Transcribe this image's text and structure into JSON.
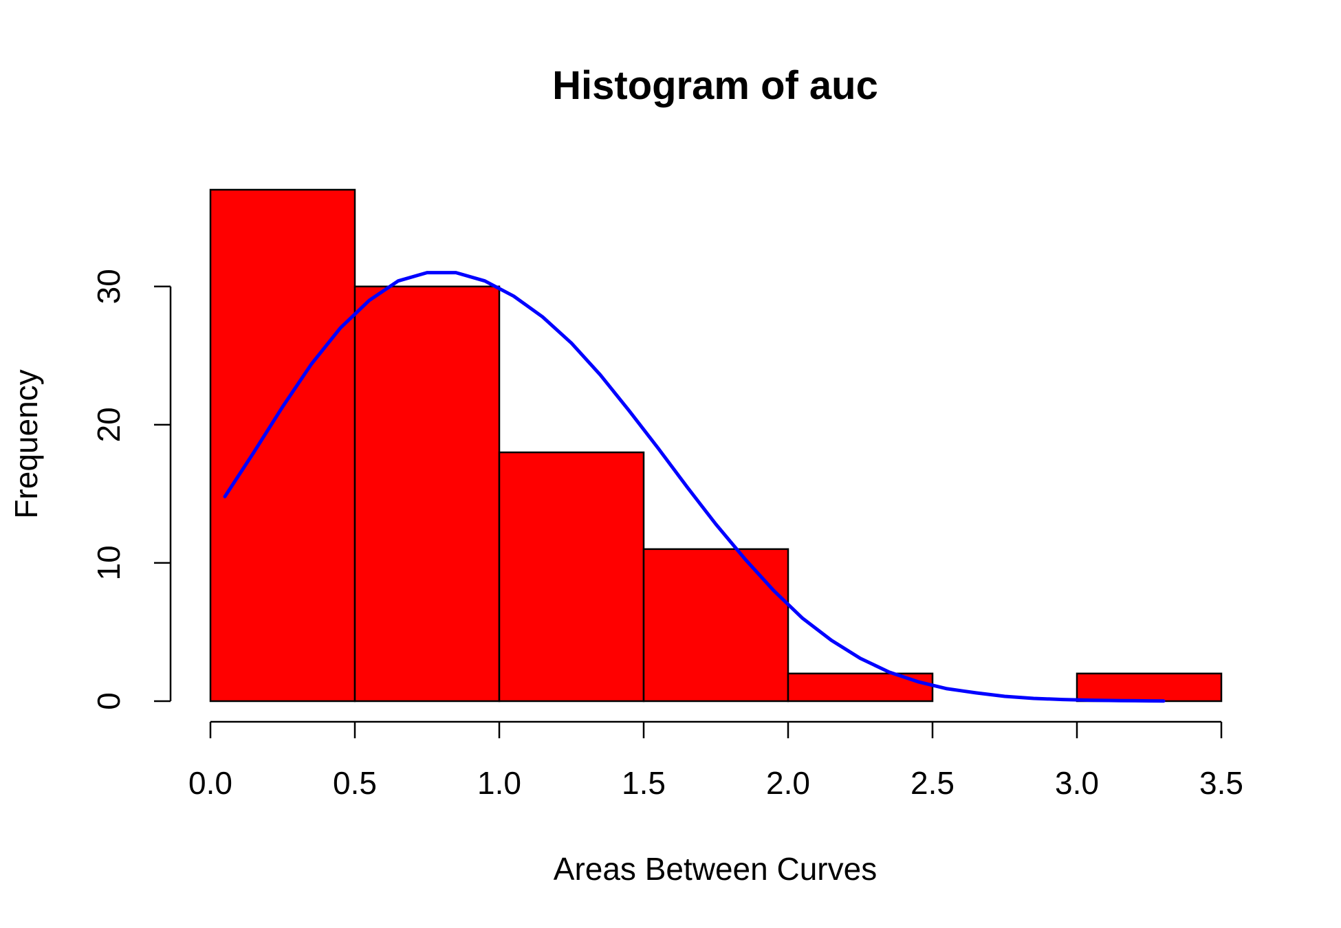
{
  "chart_data": {
    "type": "bar",
    "title": "Histogram of auc",
    "xlabel": "Areas Between Curves",
    "ylabel": "Frequency",
    "bins": [
      {
        "start": 0.0,
        "end": 0.5,
        "count": 37
      },
      {
        "start": 0.5,
        "end": 1.0,
        "count": 30
      },
      {
        "start": 1.0,
        "end": 1.5,
        "count": 18
      },
      {
        "start": 1.5,
        "end": 2.0,
        "count": 11
      },
      {
        "start": 2.0,
        "end": 2.5,
        "count": 2
      },
      {
        "start": 2.5,
        "end": 3.0,
        "count": 0
      },
      {
        "start": 3.0,
        "end": 3.5,
        "count": 2
      }
    ],
    "x_ticks": [
      "0.0",
      "0.5",
      "1.0",
      "1.5",
      "2.0",
      "2.5",
      "3.0",
      "3.5"
    ],
    "x_tick_values": [
      0.0,
      0.5,
      1.0,
      1.5,
      2.0,
      2.5,
      3.0,
      3.5
    ],
    "y_ticks": [
      "0",
      "10",
      "20",
      "30"
    ],
    "y_tick_values": [
      0,
      10,
      20,
      30
    ],
    "xlim": [
      0.0,
      3.5
    ],
    "ylim": [
      0,
      37
    ],
    "grid": false,
    "bar_color": "#ff0000",
    "bar_border_color": "#000000",
    "curve": {
      "color": "#0000ff",
      "x": [
        0.05,
        0.15,
        0.25,
        0.35,
        0.45,
        0.55,
        0.65,
        0.75,
        0.85,
        0.95,
        1.05,
        1.15,
        1.25,
        1.35,
        1.45,
        1.55,
        1.65,
        1.75,
        1.85,
        1.95,
        2.05,
        2.15,
        2.25,
        2.35,
        2.45,
        2.55,
        2.65,
        2.75,
        2.85,
        2.95,
        3.05,
        3.15,
        3.25,
        3.3
      ],
      "y": [
        14.8,
        18.0,
        21.3,
        24.4,
        27.0,
        29.0,
        30.4,
        31.0,
        31.0,
        30.4,
        29.3,
        27.8,
        25.9,
        23.6,
        21.0,
        18.3,
        15.5,
        12.8,
        10.3,
        8.0,
        6.0,
        4.4,
        3.1,
        2.1,
        1.4,
        0.9,
        0.6,
        0.35,
        0.2,
        0.12,
        0.07,
        0.04,
        0.02,
        0.01
      ]
    }
  }
}
